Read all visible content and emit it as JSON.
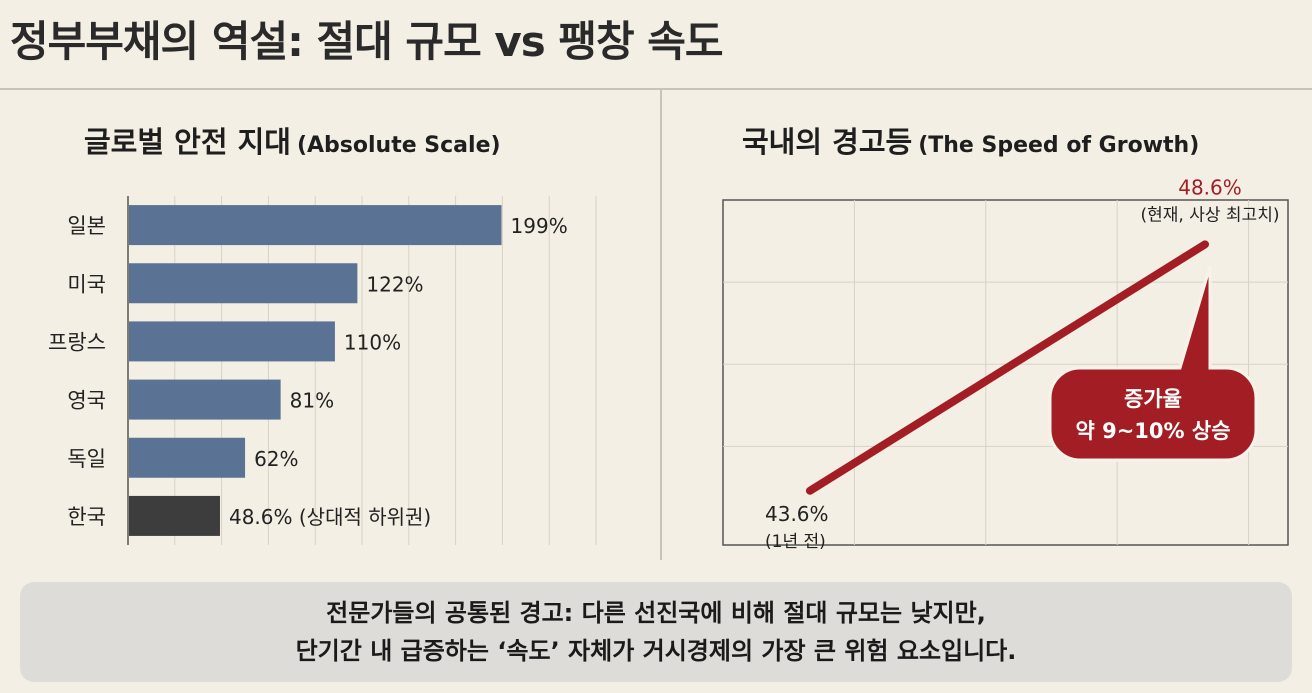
{
  "page": {
    "title": "정부부채의 역설: 절대 규모 vs 팽창 속도"
  },
  "left_panel": {
    "title_ko": "글로벌 안전 지대",
    "title_en": "(Absolute Scale)"
  },
  "right_panel": {
    "title_ko": "국내의 경고등",
    "title_en": "(The Speed of Growth)"
  },
  "caption": {
    "line1": "전문가들의 공통된 경고: 다른 선진국에 비해 절대 규모는 낮지만,",
    "line2": "단기간 내 급증하는 ‘속도’ 자체가 거시경제의 가장 큰 위험 요소입니다."
  },
  "colors": {
    "bar": "#5a7394",
    "bar_highlight": "#3d3d3d",
    "line": "#a31e24",
    "callout": "#a31e24"
  },
  "chart_data": [
    {
      "type": "bar",
      "orientation": "horizontal",
      "categories": [
        "일본",
        "미국",
        "프랑스",
        "영국",
        "독일",
        "한국"
      ],
      "values": [
        199,
        122,
        110,
        81,
        62,
        48.6
      ],
      "labels": [
        "199%",
        "122%",
        "110%",
        "81%",
        "62%",
        "48.6% (상대적 하위권)"
      ],
      "highlight": "한국",
      "xlim": [
        0,
        250
      ],
      "grid": true
    },
    {
      "type": "line",
      "x": [
        "1년 전",
        "현재"
      ],
      "values": [
        43.6,
        48.6
      ],
      "start_label": "43.6%",
      "start_note": "(1년 전)",
      "end_label": "48.6%",
      "end_note": "(현재, 사상 최고치)",
      "callout": [
        "증가율",
        "약 9~10% 상승"
      ],
      "ylim": [
        42.5,
        49.5
      ],
      "grid": true
    }
  ]
}
